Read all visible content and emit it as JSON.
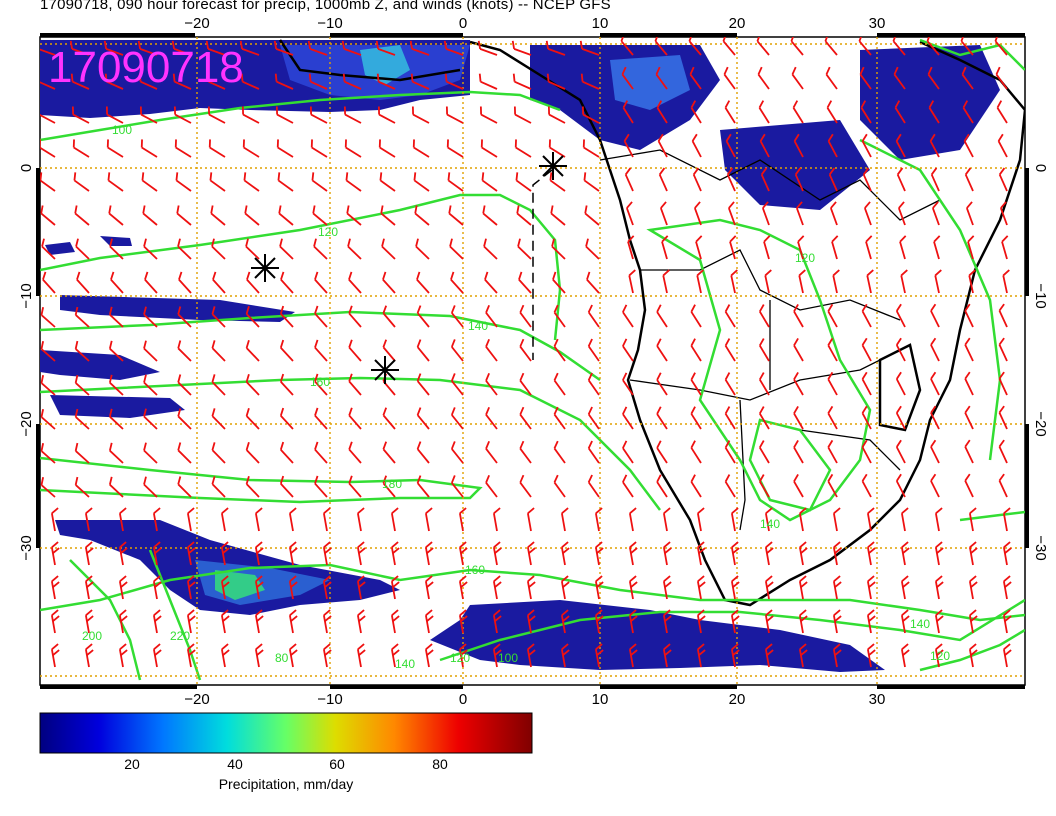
{
  "title": "17090718, 090 hour forecast for precip, 1000mb Z, and winds (knots) -- NCEP GFS",
  "stamp": "17090718",
  "x_ticks": [
    "−20",
    "−10",
    "0",
    "10",
    "20",
    "30"
  ],
  "y_ticks": [
    "0",
    "−10",
    "−20",
    "−30"
  ],
  "contour_labels": [
    "100",
    "120",
    "140",
    "160",
    "180",
    "120",
    "140",
    "160",
    "140",
    "120",
    "100",
    "80",
    "140",
    "120",
    "200",
    "220"
  ],
  "colorbar": {
    "title": "Precipitation, mm/day",
    "ticks": [
      "20",
      "40",
      "60",
      "80"
    ]
  },
  "colors": {
    "contour": "#33dd33",
    "barb": "#ee1111",
    "grid": "#e0a000",
    "precip_low": "#000080",
    "stamp": "#ff33ff"
  },
  "icons": [
    "asterisk-marker-icon",
    "asterisk-marker-icon",
    "asterisk-marker-icon"
  ]
}
